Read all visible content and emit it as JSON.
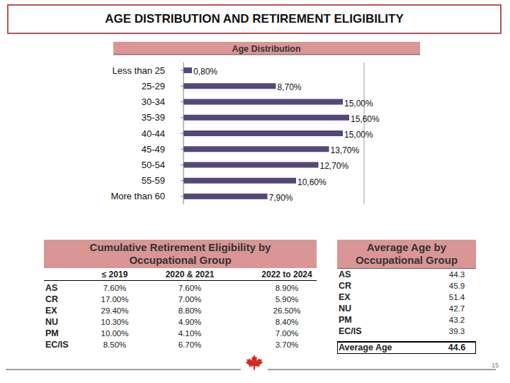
{
  "header": {
    "title": "AGE DISTRIBUTION AND RETIREMENT ELIGIBILITY"
  },
  "chart_data": {
    "type": "bar",
    "title": "Age Distribution",
    "orientation": "horizontal",
    "categories": [
      "Less than 25",
      "25-29",
      "30-34",
      "35-39",
      "40-44",
      "45-49",
      "50-54",
      "55-59",
      "More than 60"
    ],
    "values": [
      0.8,
      8.7,
      15,
      15.6,
      15,
      13.7,
      12.7,
      10.6,
      7.9
    ],
    "value_labels": [
      "0,80%",
      "8,70%",
      "15,00%",
      "15,60%",
      "15,00%",
      "13,70%",
      "12,70%",
      "10,60%",
      "7,90%"
    ],
    "data_labels": true,
    "color": "#564679",
    "xlim": [
      0,
      17
    ],
    "tick_labels": "y",
    "grid": false
  },
  "retirement_table": {
    "title": "Cumulative Retirement Eligibility by Occupational Group",
    "columns": [
      "≤ 2019",
      "2020 & 2021",
      "2022 to 2024"
    ],
    "rows": [
      [
        "AS",
        "7.60%",
        "7.60%",
        "8.90%"
      ],
      [
        "CR",
        "17.00%",
        "7.00%",
        "5.90%"
      ],
      [
        "EX",
        "29.40%",
        "8.80%",
        "26.50%"
      ],
      [
        "NU",
        "10.30%",
        "4.90%",
        "8.40%"
      ],
      [
        "PM",
        "10.00%",
        "4.10%",
        "7.00%"
      ],
      [
        "EC/IS",
        "8.50%",
        "6.70%",
        "3.70%"
      ]
    ]
  },
  "age_table": {
    "title": "Average Age by Occupational Group",
    "rows": [
      [
        "AS",
        "44.3"
      ],
      [
        "CR",
        "45.9"
      ],
      [
        "EX",
        "51.4"
      ],
      [
        "NU",
        "42.7"
      ],
      [
        "PM",
        "43.2"
      ],
      [
        "EC/IS",
        "39.3"
      ]
    ],
    "total": [
      "Average Age",
      "44.6"
    ]
  },
  "footer": {
    "page": "15"
  }
}
